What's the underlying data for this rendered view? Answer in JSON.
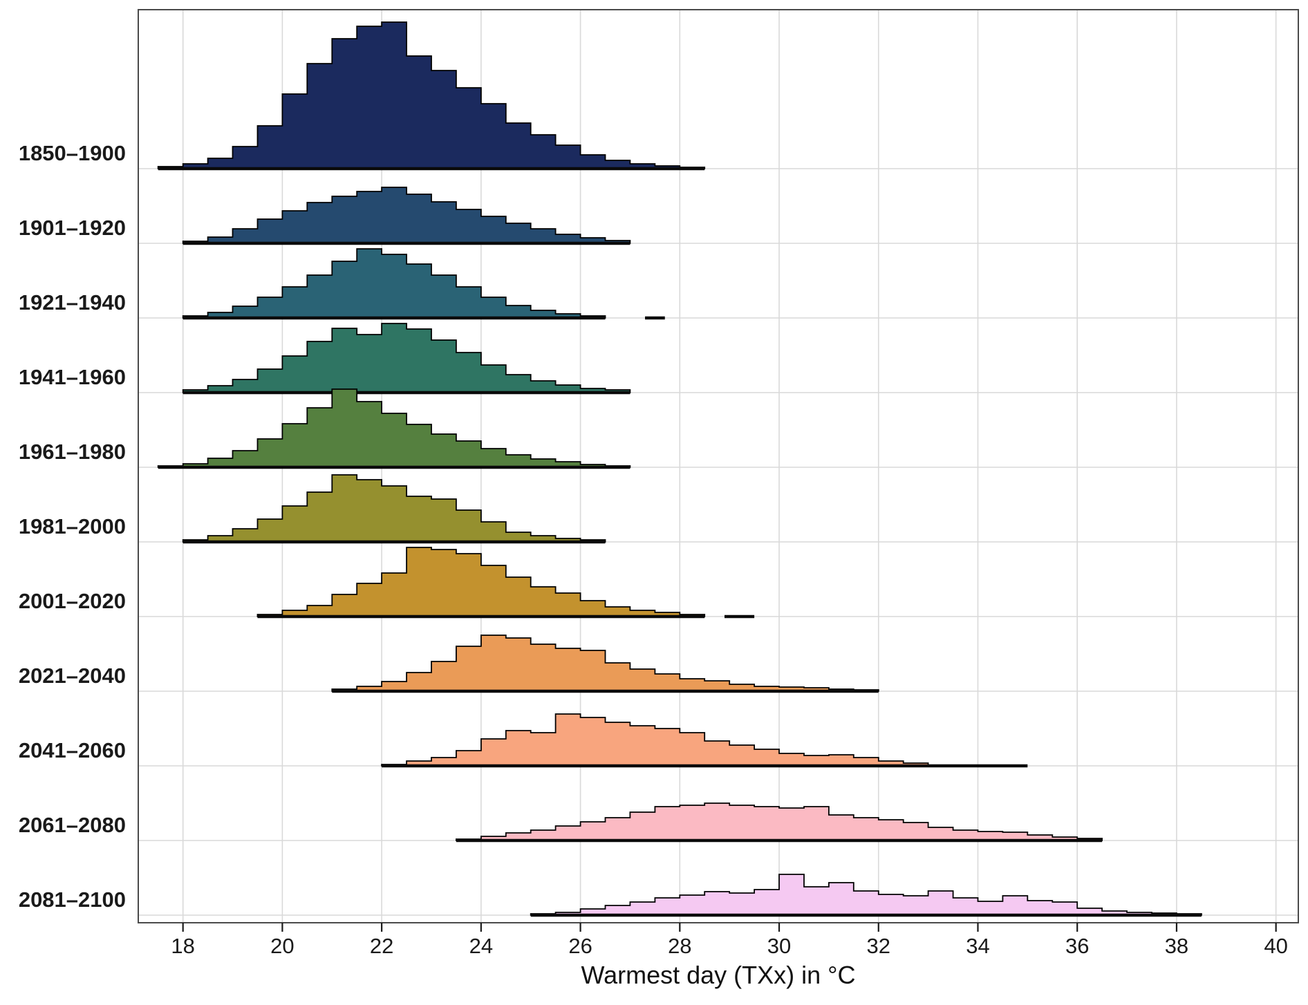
{
  "figure": {
    "background": "#ffffff"
  },
  "chart_data": {
    "type": "ridgeline-histogram",
    "title": "",
    "xlabel": "Warmest day (TXx) in °C",
    "ylabel": "",
    "x_ticks": [
      18,
      20,
      22,
      24,
      26,
      28,
      30,
      32,
      34,
      36,
      38,
      40
    ],
    "xlim": [
      17.1,
      40.45
    ],
    "bin_width": 0.5,
    "grid": true,
    "grid_color": "#d9d9d9",
    "outline_color": "#000000",
    "baseline_color": "#0a0a0a",
    "note": "heights are relative frequency per 0.5 °C bin (estimated from pixels); baseline gives the x-range of the thick rug line under each distribution; extra_baselines are detached outlier segments",
    "series": [
      {
        "name": "1850–1900",
        "color": "#1b2a5e",
        "bin_start": 17.5,
        "heights": [
          3,
          7,
          15,
          32,
          62,
          108,
          152,
          188,
          206,
          212,
          163,
          142,
          117,
          94,
          66,
          49,
          34,
          20,
          12,
          7,
          4,
          2
        ],
        "baseline": [
          17.5,
          28.5
        ],
        "extra_baselines": []
      },
      {
        "name": "1901–1920",
        "color": "#254a6f",
        "bin_start": 18.0,
        "heights": [
          3,
          9,
          21,
          35,
          47,
          59,
          68,
          75,
          81,
          71,
          60,
          49,
          39,
          29,
          21,
          13,
          8,
          4
        ],
        "baseline": [
          18.0,
          27.0
        ],
        "extra_baselines": []
      },
      {
        "name": "1921–1940",
        "color": "#2a6375",
        "bin_start": 18.0,
        "heights": [
          3,
          8,
          17,
          30,
          45,
          62,
          82,
          100,
          92,
          78,
          62,
          45,
          30,
          18,
          11,
          6,
          3
        ],
        "baseline": [
          18.0,
          26.5
        ],
        "extra_baselines": [
          [
            27.3,
            27.7
          ]
        ]
      },
      {
        "name": "1941–1960",
        "color": "#2f7563",
        "bin_start": 18.0,
        "heights": [
          4,
          10,
          19,
          34,
          53,
          74,
          93,
          84,
          100,
          92,
          76,
          58,
          40,
          26,
          17,
          11,
          6,
          4
        ],
        "baseline": [
          18.0,
          27.0
        ],
        "extra_baselines": []
      },
      {
        "name": "1961–1980",
        "color": "#55803f",
        "bin_start": 17.5,
        "heights": [
          2,
          5,
          13,
          24,
          41,
          63,
          86,
          113,
          95,
          78,
          62,
          48,
          38,
          27,
          18,
          12,
          8,
          4,
          2
        ],
        "baseline": [
          17.5,
          27.0
        ],
        "extra_baselines": []
      },
      {
        "name": "1981–2000",
        "color": "#95902f",
        "bin_start": 18.0,
        "heights": [
          3,
          9,
          19,
          33,
          52,
          72,
          97,
          90,
          81,
          66,
          62,
          46,
          29,
          14,
          9,
          5,
          3
        ],
        "baseline": [
          18.0,
          26.5
        ],
        "extra_baselines": []
      },
      {
        "name": "2001–2020",
        "color": "#c3922e",
        "bin_start": 19.5,
        "heights": [
          3,
          9,
          16,
          32,
          48,
          63,
          100,
          97,
          91,
          74,
          57,
          43,
          34,
          23,
          14,
          9,
          6,
          3
        ],
        "baseline": [
          19.5,
          28.5
        ],
        "extra_baselines": [
          [
            28.9,
            29.5
          ]
        ]
      },
      {
        "name": "2021–2040",
        "color": "#ea9b57",
        "bin_start": 21.0,
        "heights": [
          3,
          7,
          14,
          27,
          43,
          65,
          81,
          77,
          68,
          62,
          59,
          41,
          32,
          25,
          18,
          15,
          10,
          7,
          6,
          5,
          3,
          2
        ],
        "baseline": [
          21.0,
          32.0
        ],
        "extra_baselines": []
      },
      {
        "name": "2041–2060",
        "color": "#f8a57e",
        "bin_start": 22.0,
        "heights": [
          2,
          7,
          12,
          22,
          39,
          51,
          48,
          75,
          70,
          63,
          58,
          54,
          48,
          36,
          30,
          24,
          18,
          15,
          16,
          12,
          7,
          4
        ],
        "baseline": [
          22.0,
          35.0
        ],
        "extra_baselines": []
      },
      {
        "name": "2061–2080",
        "color": "#fbbac3",
        "bin_start": 23.5,
        "heights": [
          2,
          6,
          11,
          15,
          21,
          27,
          33,
          41,
          49,
          51,
          54,
          51,
          49,
          47,
          49,
          37,
          33,
          30,
          26,
          19,
          15,
          13,
          12,
          8,
          5,
          3
        ],
        "baseline": [
          23.5,
          36.5
        ],
        "extra_baselines": []
      },
      {
        "name": "2081–2100",
        "color": "#f5c9f2",
        "bin_start": 25.0,
        "heights": [
          2,
          4,
          9,
          14,
          19,
          25,
          29,
          34,
          32,
          37,
          59,
          41,
          47,
          35,
          30,
          28,
          35,
          25,
          20,
          28,
          21,
          19,
          10,
          6,
          4,
          3,
          2
        ],
        "baseline": [
          25.0,
          38.5
        ],
        "extra_baselines": []
      }
    ]
  }
}
